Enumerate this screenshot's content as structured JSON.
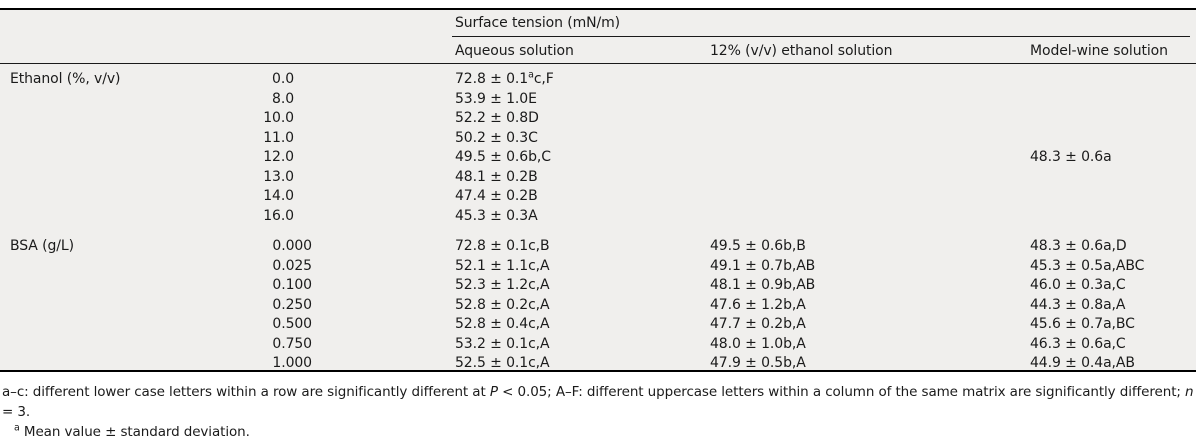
{
  "table": {
    "group_header": "Surface tension (mN/m)",
    "column_headers": [
      "Aqueous solution",
      "12% (v/v) ethanol solution",
      "Model-wine solution"
    ],
    "sections": [
      {
        "id": "ethanol",
        "label": "Ethanol (%, v/v)",
        "rows": [
          {
            "level": "0.0",
            "aqueous": [
              {
                "t": "72.8 ± 0.1"
              },
              {
                "t": "a",
                "sup": true
              },
              {
                "t": "c,F"
              }
            ],
            "ethanol12": "",
            "modelwine": ""
          },
          {
            "level": "8.0",
            "aqueous": "53.9 ± 1.0E",
            "ethanol12": "",
            "modelwine": ""
          },
          {
            "level": "10.0",
            "aqueous": "52.2 ± 0.8D",
            "ethanol12": "",
            "modelwine": ""
          },
          {
            "level": "11.0",
            "aqueous": "50.2 ± 0.3C",
            "ethanol12": "",
            "modelwine": ""
          },
          {
            "level": "12.0",
            "aqueous": "49.5 ± 0.6b,C",
            "ethanol12": "",
            "modelwine": "48.3 ± 0.6a"
          },
          {
            "level": "13.0",
            "aqueous": "48.1 ± 0.2B",
            "ethanol12": "",
            "modelwine": ""
          },
          {
            "level": "14.0",
            "aqueous": "47.4 ± 0.2B",
            "ethanol12": "",
            "modelwine": ""
          },
          {
            "level": "16.0",
            "aqueous": "45.3 ± 0.3A",
            "ethanol12": "",
            "modelwine": ""
          }
        ]
      },
      {
        "id": "bsa",
        "label": "BSA (g/L)",
        "rows": [
          {
            "level": "0.000",
            "aqueous": "72.8 ± 0.1c,B",
            "ethanol12": "49.5 ± 0.6b,B",
            "modelwine": "48.3 ± 0.6a,D"
          },
          {
            "level": "0.025",
            "aqueous": "52.1 ± 1.1c,A",
            "ethanol12": "49.1 ± 0.7b,AB",
            "modelwine": "45.3 ± 0.5a,ABC"
          },
          {
            "level": "0.100",
            "aqueous": "52.3 ± 1.2c,A",
            "ethanol12": "48.1 ± 0.9b,AB",
            "modelwine": "46.0 ± 0.3a,C"
          },
          {
            "level": "0.250",
            "aqueous": "52.8 ± 0.2c,A",
            "ethanol12": "47.6 ± 1.2b,A",
            "modelwine": "44.3 ± 0.8a,A"
          },
          {
            "level": "0.500",
            "aqueous": "52.8 ± 0.4c,A",
            "ethanol12": "47.7 ± 0.2b,A",
            "modelwine": "45.6 ± 0.7a,BC"
          },
          {
            "level": "0.750",
            "aqueous": "53.2 ± 0.1c,A",
            "ethanol12": "48.0 ± 1.0b,A",
            "modelwine": "46.3 ± 0.6a,C"
          },
          {
            "level": "1.000",
            "aqueous": "52.5 ± 0.1c,A",
            "ethanol12": "47.9 ± 0.5b,A",
            "modelwine": "44.9 ± 0.4a,AB"
          }
        ]
      }
    ]
  },
  "footnotes": {
    "significance": [
      {
        "t": "a–c: different lower case letters within a row are significantly different at "
      },
      {
        "t": "P",
        "italic": true
      },
      {
        "t": " < 0.05; A–F: different uppercase letters within a column of the same matrix are significantly different; "
      },
      {
        "t": "n",
        "italic": true
      },
      {
        "t": " = 3."
      }
    ],
    "mean_note": [
      {
        "t": "a",
        "sup": true
      },
      {
        "t": " Mean value ± standard deviation."
      }
    ]
  }
}
